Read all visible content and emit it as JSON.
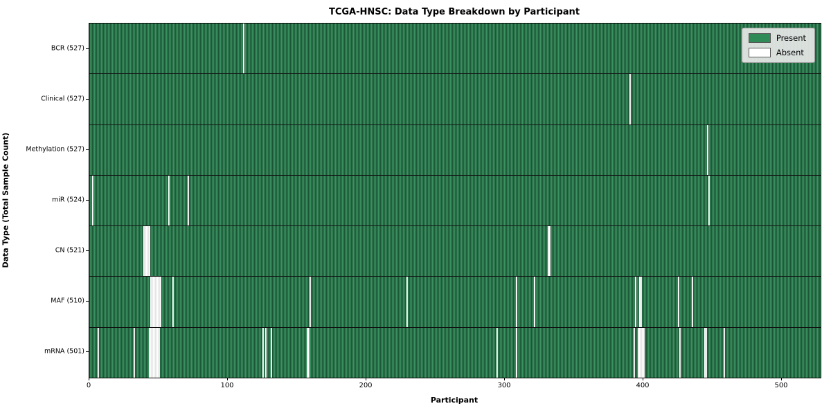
{
  "chart_data": {
    "type": "heatmap",
    "title": "TCGA-HNSC: Data Type Breakdown by Participant",
    "xlabel": "Participant",
    "ylabel": "Data Type (Total Sample Count)",
    "x_ticks": [
      0,
      100,
      200,
      300,
      400,
      500
    ],
    "x_range": [
      0,
      528
    ],
    "n_participants": 528,
    "grid": false,
    "legend_position": "upper right",
    "legend": [
      {
        "label": "Present",
        "color": "#2e8b57"
      },
      {
        "label": "Absent",
        "color": "#ffffff"
      }
    ],
    "colors": {
      "present": "#2e8b57",
      "absent": "#ffffff",
      "bar_edge": "#1c1c1c"
    },
    "rows": [
      {
        "label": "BCR (527)",
        "name": "BCR",
        "present_count": 527,
        "absent_participants": [
          111
        ]
      },
      {
        "label": "Clinical (527)",
        "name": "Clinical",
        "present_count": 527,
        "absent_participants": [
          390
        ]
      },
      {
        "label": "Methylation (527)",
        "name": "Methylation",
        "present_count": 527,
        "absent_participants": [
          446
        ]
      },
      {
        "label": "miR (524)",
        "name": "miR",
        "present_count": 524,
        "absent_participants": [
          2,
          57,
          71,
          447
        ]
      },
      {
        "label": "CN (521)",
        "name": "CN",
        "present_count": 521,
        "absent_participants": [
          39,
          40,
          41,
          42,
          43,
          331,
          332
        ]
      },
      {
        "label": "MAF (510)",
        "name": "MAF",
        "present_count": 510,
        "absent_participants": [
          44,
          45,
          46,
          47,
          48,
          49,
          50,
          51,
          60,
          159,
          229,
          308,
          321,
          394,
          397,
          398,
          425,
          435
        ]
      },
      {
        "label": "mRNA (501)",
        "name": "mRNA",
        "present_count": 501,
        "absent_participants": [
          6,
          32,
          43,
          44,
          45,
          46,
          47,
          48,
          49,
          50,
          125,
          127,
          131,
          157,
          158,
          294,
          308,
          393,
          396,
          397,
          398,
          399,
          400,
          426,
          444,
          445,
          458
        ]
      }
    ]
  }
}
